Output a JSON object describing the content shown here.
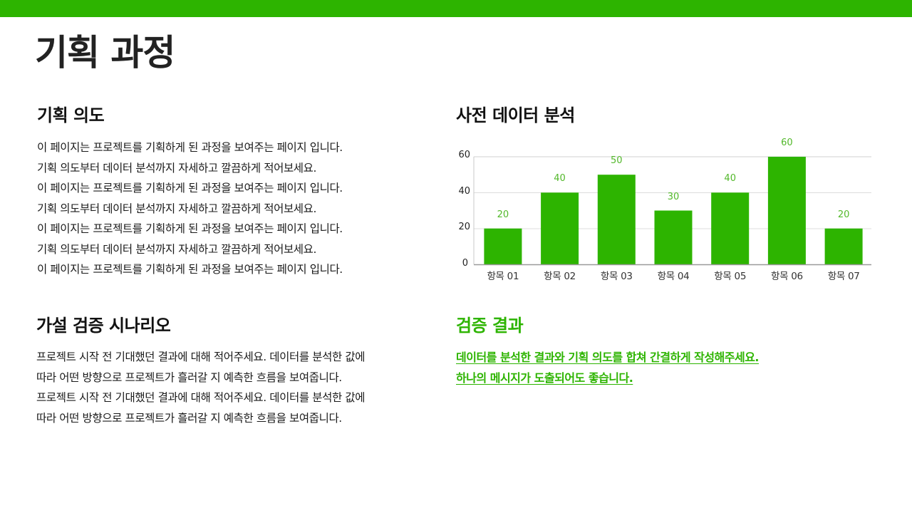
{
  "colors": {
    "accent": "#2db400",
    "text": "#1a1a1a",
    "title": "#222222"
  },
  "page": {
    "title": "기획 과정"
  },
  "sections": {
    "intent": {
      "title": "기획 의도",
      "lines": [
        "이 페이지는 프로젝트를 기획하게 된 과정을 보여주는 페이지 입니다.",
        "기획 의도부터 데이터 분석까지 자세하고 깔끔하게 적어보세요.",
        "이 페이지는 프로젝트를 기획하게 된 과정을 보여주는 페이지 입니다.",
        "기획 의도부터 데이터 분석까지 자세하고 깔끔하게 적어보세요.",
        "이 페이지는 프로젝트를 기획하게 된 과정을 보여주는 페이지 입니다.",
        "기획 의도부터 데이터 분석까지 자세하고 깔끔하게 적어보세요.",
        "이 페이지는 프로젝트를 기획하게 된 과정을 보여주는 페이지 입니다."
      ]
    },
    "analysis": {
      "title": "사전 데이터 분석"
    },
    "hypothesis": {
      "title": "가설 검증 시나리오",
      "lines": [
        "프로젝트 시작 전 기대했던 결과에 대해 적어주세요. 데이터를 분석한 값에",
        "따라 어떤 방향으로 프로젝트가 흘러갈 지 예측한 흐름을 보여줍니다.",
        "프로젝트 시작 전 기대했던 결과에 대해 적어주세요. 데이터를 분석한 값에",
        "따라 어떤 방향으로 프로젝트가 흘러갈 지 예측한 흐름을 보여줍니다."
      ]
    },
    "result": {
      "title": "검증 결과",
      "lines": [
        "데이터를 분석한 결과와 기획 의도를 합쳐 간결하게 작성해주세요.",
        "하나의 메시지가 도출되어도 좋습니다."
      ]
    }
  },
  "chart_data": {
    "type": "bar",
    "title": "사전 데이터 분석",
    "categories": [
      "항목 01",
      "항목 02",
      "항목 03",
      "항목 04",
      "항목 05",
      "항목 06",
      "항목 07"
    ],
    "values": [
      20,
      40,
      50,
      30,
      40,
      60,
      20
    ],
    "data_labels": [
      "20",
      "40",
      "50",
      "30",
      "40",
      "60",
      "20"
    ],
    "xlabel": "",
    "ylabel": "",
    "ylim": [
      0,
      60
    ],
    "yticks": [
      "0",
      "20",
      "40",
      "60"
    ],
    "grid": true,
    "legend": "none",
    "bar_color": "#2db400",
    "label_color": "#52b82a"
  }
}
